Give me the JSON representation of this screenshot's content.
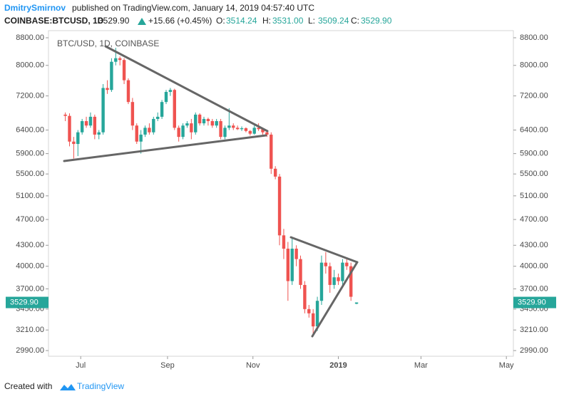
{
  "header": {
    "author": "DmitrySmirnov",
    "published": "published on TradingView.com, January 14, 2019 04:57:40 UTC",
    "symbol": "COINBASE:BTCUSD, 1D",
    "price": "3529.90",
    "change": "+15.66 (+0.45%)",
    "ohlc": [
      {
        "label": "O:",
        "value": "3514.24"
      },
      {
        "label": "H:",
        "value": "3531.00"
      },
      {
        "label": "L:",
        "value": "3509.24"
      },
      {
        "label": "C:",
        "value": "3529.90"
      }
    ]
  },
  "chart_data": {
    "type": "candlestick",
    "title": "BTC/USD, 1D, COINBASE",
    "log_scale": true,
    "grid": false,
    "up_color": "#26a69a",
    "down_color": "#ef5350",
    "x": [
      "2018-06-20",
      "2018-06-23",
      "2018-06-26",
      "2018-06-29",
      "2018-07-02",
      "2018-07-05",
      "2018-07-08",
      "2018-07-11",
      "2018-07-14",
      "2018-07-17",
      "2018-07-20",
      "2018-07-23",
      "2018-07-26",
      "2018-07-29",
      "2018-08-01",
      "2018-08-04",
      "2018-08-07",
      "2018-08-10",
      "2018-08-13",
      "2018-08-16",
      "2018-08-19",
      "2018-08-22",
      "2018-08-25",
      "2018-08-28",
      "2018-08-31",
      "2018-09-03",
      "2018-09-06",
      "2018-09-09",
      "2018-09-12",
      "2018-09-15",
      "2018-09-18",
      "2018-09-21",
      "2018-09-24",
      "2018-09-27",
      "2018-09-30",
      "2018-10-03",
      "2018-10-06",
      "2018-10-09",
      "2018-10-12",
      "2018-10-15",
      "2018-10-18",
      "2018-10-21",
      "2018-10-24",
      "2018-10-27",
      "2018-10-30",
      "2018-11-02",
      "2018-11-05",
      "2018-11-08",
      "2018-11-11",
      "2018-11-14",
      "2018-11-17",
      "2018-11-20",
      "2018-11-23",
      "2018-11-26",
      "2018-11-29",
      "2018-12-02",
      "2018-12-05",
      "2018-12-08",
      "2018-12-11",
      "2018-12-14",
      "2018-12-17",
      "2018-12-20",
      "2018-12-23",
      "2018-12-26",
      "2018-12-29",
      "2019-01-01",
      "2019-01-04",
      "2019-01-07",
      "2019-01-10",
      "2019-01-14"
    ],
    "open": [
      6750,
      6720,
      6150,
      6100,
      6350,
      6600,
      6500,
      6700,
      6300,
      6350,
      7400,
      7350,
      8100,
      8200,
      8150,
      7600,
      7050,
      6500,
      6150,
      6300,
      6450,
      6350,
      6650,
      6700,
      7050,
      7300,
      7350,
      6450,
      6250,
      6500,
      6550,
      6350,
      6750,
      6550,
      6650,
      6600,
      6500,
      6600,
      6250,
      6450,
      6500,
      6450,
      6420,
      6440,
      6380,
      6320,
      6450,
      6420,
      6350,
      6300,
      5600,
      5450,
      4450,
      4250,
      3800,
      4250,
      4100,
      3750,
      3450,
      3400,
      3250,
      3550,
      4050,
      4000,
      3750,
      3850,
      3800,
      4050,
      4000,
      3514.24
    ],
    "high": [
      6800,
      6780,
      6250,
      6400,
      6650,
      6700,
      6800,
      6750,
      6400,
      7500,
      7600,
      8200,
      8500,
      8250,
      8200,
      7650,
      7150,
      6550,
      6400,
      6500,
      6550,
      6700,
      6800,
      7100,
      7350,
      7400,
      7380,
      6500,
      6550,
      6600,
      6650,
      6800,
      6780,
      6700,
      6680,
      6650,
      6650,
      6650,
      6500,
      6900,
      6550,
      6500,
      6480,
      6460,
      6400,
      6500,
      6550,
      6450,
      6400,
      6350,
      5650,
      5500,
      4550,
      4350,
      4400,
      4300,
      4150,
      3800,
      3500,
      3450,
      3600,
      4150,
      4200,
      4050,
      3950,
      3900,
      4100,
      4100,
      4050,
      3531.0
    ],
    "low": [
      6600,
      6050,
      5800,
      5850,
      6300,
      6450,
      6450,
      6200,
      6200,
      6300,
      7250,
      7300,
      8000,
      8000,
      7500,
      7000,
      6400,
      6100,
      5900,
      6250,
      6300,
      6300,
      6600,
      6650,
      7000,
      7200,
      6400,
      6150,
      6200,
      6450,
      6200,
      6300,
      6500,
      6500,
      6500,
      6450,
      6450,
      6200,
      6200,
      6400,
      6400,
      6400,
      6380,
      6350,
      6280,
      6300,
      6380,
      6300,
      6250,
      5500,
      5400,
      4300,
      4100,
      3550,
      3750,
      4000,
      3700,
      3400,
      3350,
      3150,
      3200,
      3500,
      3900,
      3650,
      3700,
      3750,
      3750,
      3950,
      3550,
      3509.24
    ],
    "close": [
      6720,
      6150,
      6100,
      6350,
      6600,
      6500,
      6700,
      6300,
      6350,
      7400,
      7350,
      8100,
      8200,
      8150,
      7600,
      7050,
      6500,
      6150,
      6300,
      6450,
      6350,
      6650,
      6700,
      7050,
      7300,
      7350,
      6450,
      6250,
      6500,
      6550,
      6350,
      6750,
      6550,
      6650,
      6600,
      6500,
      6600,
      6250,
      6450,
      6500,
      6450,
      6420,
      6440,
      6380,
      6320,
      6450,
      6420,
      6350,
      6300,
      5600,
      5450,
      4450,
      4250,
      3800,
      4250,
      4100,
      3750,
      3450,
      3400,
      3250,
      3550,
      4050,
      4000,
      3750,
      3850,
      3800,
      4050,
      4000,
      3600,
      3529.9
    ],
    "xlim": [
      "2018-06-09",
      "2019-05-06"
    ],
    "xticks": [
      {
        "value": "2018-07-01",
        "label": "Jul"
      },
      {
        "value": "2018-09-01",
        "label": "Sep"
      },
      {
        "value": "2018-11-01",
        "label": "Nov"
      },
      {
        "value": "2019-01-01",
        "label": "2019"
      },
      {
        "value": "2019-03-01",
        "label": "Mar"
      },
      {
        "value": "2019-05-01",
        "label": "May"
      }
    ],
    "ylim": [
      2932,
      9019
    ],
    "yticks": [
      {
        "value": 2990,
        "label": "2990.00"
      },
      {
        "value": 3210,
        "label": "3210.00"
      },
      {
        "value": 3450,
        "label": "3450.00"
      },
      {
        "value": 3700,
        "label": "3700.00"
      },
      {
        "value": 4000,
        "label": "4000.00"
      },
      {
        "value": 4300,
        "label": "4300.00"
      },
      {
        "value": 4700,
        "label": "4700.00"
      },
      {
        "value": 5100,
        "label": "5100.00"
      },
      {
        "value": 5500,
        "label": "5500.00"
      },
      {
        "value": 5900,
        "label": "5900.00"
      },
      {
        "value": 6400,
        "label": "6400.00"
      },
      {
        "value": 7200,
        "label": "7200.00"
      },
      {
        "value": 8000,
        "label": "8000.00"
      },
      {
        "value": 8800,
        "label": "8800.00"
      }
    ]
  },
  "footer": {
    "created": "Created with",
    "brand": "TradingView"
  }
}
